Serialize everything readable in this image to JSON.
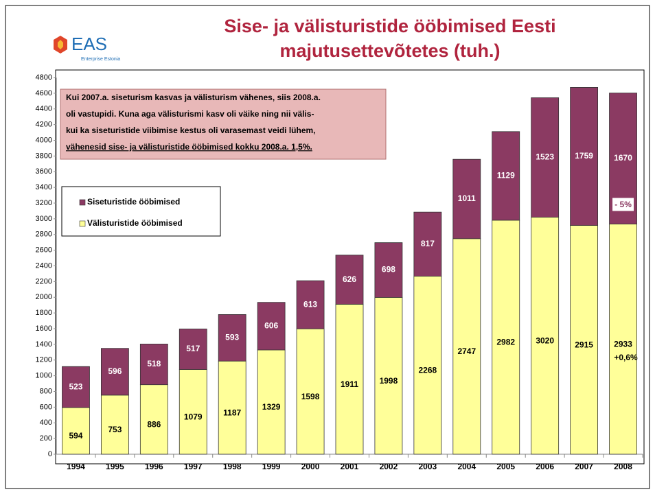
{
  "logo": {
    "text": "EAS",
    "subtitle": "Enterprise Estonia"
  },
  "chart_data": {
    "type": "stacked-bar",
    "title": [
      "Sise- ja välisturistide ööbimised Eesti",
      "majutusettevõtetes (tuh.)"
    ],
    "categories": [
      "1994",
      "1995",
      "1996",
      "1997",
      "1998",
      "1999",
      "2000",
      "2001",
      "2002",
      "2003",
      "2004",
      "2005",
      "2006",
      "2007",
      "2008"
    ],
    "series": [
      {
        "name": "Välisturistide ööbimised",
        "color": "#ffff99",
        "values": [
          594,
          753,
          886,
          1079,
          1187,
          1329,
          1598,
          1911,
          1998,
          2268,
          2747,
          2982,
          3020,
          2915,
          2933
        ]
      },
      {
        "name": "Siseturistide ööbimised",
        "color": "#8b3a62",
        "values": [
          523,
          596,
          518,
          517,
          593,
          606,
          613,
          626,
          698,
          817,
          1011,
          1129,
          1523,
          1759,
          1670
        ]
      }
    ],
    "ylim": [
      0,
      4800
    ],
    "yticks": [
      0,
      200,
      400,
      600,
      800,
      1000,
      1200,
      1400,
      1600,
      1800,
      2000,
      2200,
      2400,
      2600,
      2800,
      3000,
      3200,
      3400,
      3600,
      3800,
      4000,
      4200,
      4400,
      4600,
      4800
    ],
    "note_lines": [
      "Kui 2007.a. siseturism kasvas ja välisturism vähenes, siis 2008.a.",
      "oli vastupidi.  Kuna aga välisturismi kasv oli väike ning nii välis-",
      "kui ka siseturistide viibimise kestus oli varasemast veidi lühem,",
      "vähenesid sise- ja välisturistide ööbimised kokku 2008.a. 1,5%."
    ],
    "annotations": [
      "- 5%",
      "+0,6%"
    ]
  }
}
